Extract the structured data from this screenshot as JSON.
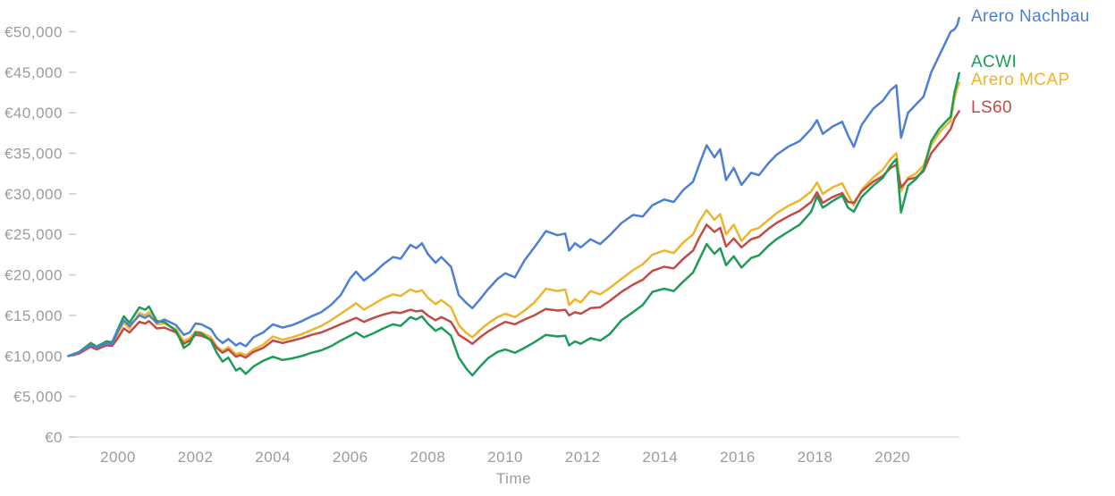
{
  "chart_data": {
    "type": "line",
    "title": "",
    "xlabel": "Time",
    "ylabel": "",
    "currency": "EUR",
    "grid": false,
    "legend_position": "right-of-line-ends",
    "xlim": [
      1998.72,
      2021.72
    ],
    "ylim": [
      0,
      52260
    ],
    "x_ticks": [
      {
        "value": 2000,
        "label": "2000"
      },
      {
        "value": 2002,
        "label": "2002"
      },
      {
        "value": 2004,
        "label": "2004"
      },
      {
        "value": 2006,
        "label": "2006"
      },
      {
        "value": 2008,
        "label": "2008"
      },
      {
        "value": 2010,
        "label": "2010"
      },
      {
        "value": 2012,
        "label": "2012"
      },
      {
        "value": 2014,
        "label": "2014"
      },
      {
        "value": 2016,
        "label": "2016"
      },
      {
        "value": 2018,
        "label": "2018"
      },
      {
        "value": 2020,
        "label": "2020"
      }
    ],
    "y_ticks": [
      {
        "value": 0,
        "label": "€0"
      },
      {
        "value": 5000,
        "label": "€5,000"
      },
      {
        "value": 10000,
        "label": "€10,000"
      },
      {
        "value": 15000,
        "label": "€15,000"
      },
      {
        "value": 20000,
        "label": "€20,000"
      },
      {
        "value": 25000,
        "label": "€25,000"
      },
      {
        "value": 30000,
        "label": "€30,000"
      },
      {
        "value": 35000,
        "label": "€35,000"
      },
      {
        "value": 40000,
        "label": "€40,000"
      },
      {
        "value": 45000,
        "label": "€45,000"
      },
      {
        "value": 50000,
        "label": "€50,000"
      }
    ],
    "x": [
      1998.72,
      1999.0,
      1999.3,
      1999.45,
      1999.7,
      1999.85,
      2000.0,
      2000.15,
      2000.3,
      2000.55,
      2000.7,
      2000.8,
      2001.0,
      2001.2,
      2001.5,
      2001.7,
      2001.85,
      2002.0,
      2002.15,
      2002.4,
      2002.55,
      2002.7,
      2002.85,
      2003.05,
      2003.15,
      2003.3,
      2003.5,
      2003.75,
      2004.0,
      2004.25,
      2004.5,
      2004.75,
      2005.0,
      2005.25,
      2005.5,
      2005.75,
      2006.0,
      2006.15,
      2006.35,
      2006.6,
      2006.85,
      2007.1,
      2007.3,
      2007.55,
      2007.7,
      2007.85,
      2008.0,
      2008.2,
      2008.35,
      2008.6,
      2008.8,
      2009.0,
      2009.15,
      2009.35,
      2009.55,
      2009.8,
      2010.0,
      2010.25,
      2010.5,
      2010.75,
      2011.05,
      2011.35,
      2011.55,
      2011.65,
      2011.8,
      2011.95,
      2012.2,
      2012.45,
      2012.7,
      2013.0,
      2013.3,
      2013.55,
      2013.8,
      2014.1,
      2014.35,
      2014.6,
      2014.85,
      2015.0,
      2015.2,
      2015.4,
      2015.55,
      2015.7,
      2015.9,
      2016.1,
      2016.35,
      2016.55,
      2016.8,
      2017.0,
      2017.3,
      2017.6,
      2017.9,
      2018.05,
      2018.2,
      2018.45,
      2018.7,
      2018.85,
      2019.0,
      2019.2,
      2019.5,
      2019.75,
      2019.95,
      2020.1,
      2020.22,
      2020.4,
      2020.6,
      2020.8,
      2021.0,
      2021.2,
      2021.35,
      2021.5,
      2021.6,
      2021.67,
      2021.72
    ],
    "series": [
      {
        "name": "Arero Nachbau",
        "color": "#4d7fd6",
        "z": 4,
        "values": [
          10000,
          10400,
          11400,
          11000,
          11600,
          11500,
          13100,
          14400,
          13700,
          15000,
          14700,
          15000,
          14100,
          14500,
          13800,
          12600,
          12900,
          14000,
          13900,
          13300,
          12200,
          11600,
          12100,
          11300,
          11600,
          11200,
          12300,
          12900,
          13900,
          13500,
          13800,
          14300,
          14900,
          15400,
          16300,
          17500,
          19600,
          20400,
          19300,
          20200,
          21300,
          22200,
          22000,
          23700,
          23300,
          23900,
          22600,
          21500,
          22200,
          21000,
          17500,
          16500,
          15900,
          17000,
          18200,
          19500,
          20200,
          19700,
          21800,
          23400,
          25400,
          24900,
          25100,
          23000,
          23900,
          23400,
          24400,
          23800,
          24900,
          26400,
          27400,
          27200,
          28600,
          29300,
          29000,
          30500,
          31500,
          33500,
          36000,
          34500,
          35500,
          31700,
          33200,
          31100,
          32600,
          32300,
          33800,
          34800,
          35800,
          36500,
          38000,
          39100,
          37400,
          38300,
          38900,
          37200,
          35800,
          38500,
          40500,
          41500,
          42800,
          43400,
          36900,
          40000,
          41000,
          42000,
          45000,
          47000,
          48500,
          50000,
          50300,
          50800,
          51700
        ]
      },
      {
        "name": "ACWI",
        "color": "#1e9b58",
        "z": 3,
        "values": [
          10000,
          10500,
          11600,
          11150,
          11800,
          11700,
          13300,
          14900,
          14100,
          16000,
          15700,
          16100,
          14300,
          14200,
          13100,
          11000,
          11500,
          12900,
          12800,
          11900,
          10400,
          9300,
          9800,
          8200,
          8500,
          7800,
          8700,
          9400,
          9900,
          9500,
          9700,
          10000,
          10400,
          10700,
          11200,
          11900,
          12500,
          12900,
          12300,
          12800,
          13400,
          13900,
          13700,
          14800,
          14500,
          14900,
          14000,
          13100,
          13500,
          12500,
          9800,
          8400,
          7600,
          8700,
          9700,
          10500,
          10800,
          10400,
          11000,
          11700,
          12600,
          12400,
          12500,
          11300,
          11800,
          11500,
          12200,
          11900,
          12700,
          14400,
          15400,
          16300,
          17900,
          18300,
          18000,
          19200,
          20300,
          21800,
          23800,
          22600,
          23300,
          21200,
          22300,
          20900,
          22100,
          22400,
          23600,
          24400,
          25300,
          26200,
          27800,
          29700,
          28300,
          29100,
          29800,
          28300,
          27800,
          29600,
          31000,
          32000,
          33500,
          34300,
          27700,
          31000,
          31800,
          33000,
          36500,
          38000,
          38800,
          39500,
          42500,
          43800,
          44900
        ]
      },
      {
        "name": "Arero MCAP",
        "color": "#efb42d",
        "z": 1,
        "values": [
          10000,
          10400,
          11300,
          10900,
          11500,
          11400,
          12800,
          14100,
          13400,
          15300,
          15000,
          15400,
          13900,
          14000,
          13300,
          11800,
          12200,
          13000,
          12900,
          12300,
          11200,
          10600,
          11100,
          10200,
          10400,
          10100,
          10800,
          11400,
          12400,
          12000,
          12300,
          12700,
          13200,
          13700,
          14400,
          15200,
          16000,
          16500,
          15700,
          16400,
          17100,
          17600,
          17400,
          18200,
          17900,
          18100,
          17200,
          16400,
          16900,
          16000,
          13800,
          12800,
          12300,
          13200,
          14000,
          14800,
          15200,
          14800,
          15600,
          16600,
          18300,
          18000,
          18200,
          16300,
          17000,
          16600,
          18000,
          17600,
          18400,
          19500,
          20600,
          21300,
          22500,
          23000,
          22700,
          24000,
          25000,
          26500,
          28000,
          26800,
          27500,
          25000,
          26200,
          24200,
          25500,
          25800,
          26800,
          27600,
          28500,
          29200,
          30300,
          31400,
          30000,
          30800,
          31300,
          29900,
          28600,
          30500,
          32000,
          33000,
          34300,
          35000,
          30300,
          32000,
          32500,
          33500,
          36000,
          37500,
          38300,
          39000,
          41800,
          43000,
          43700
        ]
      },
      {
        "name": "LS60",
        "color": "#c24a47",
        "z": 2,
        "values": [
          10000,
          10300,
          11150,
          10800,
          11300,
          11250,
          12200,
          13400,
          12900,
          14200,
          14000,
          14300,
          13400,
          13500,
          12900,
          11500,
          11900,
          12600,
          12500,
          12000,
          11000,
          10400,
          10800,
          9900,
          10100,
          9800,
          10500,
          11000,
          11900,
          11600,
          11900,
          12200,
          12600,
          12900,
          13400,
          13900,
          14400,
          14700,
          14200,
          14700,
          15100,
          15400,
          15300,
          15700,
          15500,
          15600,
          15000,
          14400,
          14800,
          14200,
          12600,
          12000,
          11500,
          12300,
          13000,
          13700,
          14200,
          13900,
          14500,
          15000,
          15800,
          15600,
          15700,
          15000,
          15400,
          15200,
          15900,
          16000,
          16800,
          17900,
          18800,
          19400,
          20500,
          21000,
          20800,
          22000,
          23000,
          24500,
          26200,
          25300,
          25800,
          23500,
          24500,
          23400,
          24400,
          24700,
          25700,
          26400,
          27200,
          27900,
          29000,
          30200,
          28900,
          29600,
          30100,
          29000,
          28900,
          30300,
          31500,
          32200,
          33200,
          33600,
          30800,
          31800,
          32000,
          32800,
          35000,
          36200,
          37000,
          38000,
          39300,
          39800,
          40200
        ]
      }
    ]
  }
}
